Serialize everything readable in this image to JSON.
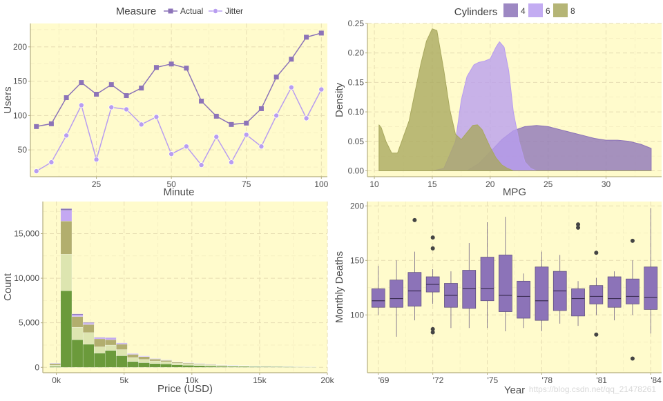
{
  "colors": {
    "panel_bg": "#FFFBCC",
    "grid": "#E6DDB2",
    "axis_line": "#B3AE7E",
    "actual": "#8C73B8",
    "jitter": "#B89DF0",
    "cyl4": "#8C73B8",
    "cyl6": "#B89DF0",
    "cyl8": "#A8A85E",
    "hist": [
      "#6B9A3B",
      "#DDE5B0",
      "#B2AE6E",
      "#C4A8F2",
      "#8A75B8"
    ],
    "box_fill": "#8C73B8",
    "box_line": "#5a4a7a",
    "outlier": "#444444"
  },
  "chart_data": [
    {
      "id": "line",
      "type": "line",
      "xlabel": "Minute",
      "ylabel": "Users",
      "xlim": [
        3,
        102
      ],
      "ylim": [
        11,
        234
      ],
      "xticks": [
        25,
        50,
        75,
        100
      ],
      "yticks": [
        50,
        100,
        150,
        200
      ],
      "legend": {
        "title": "Measure",
        "position": "top"
      },
      "x": [
        5,
        10,
        15,
        20,
        25,
        30,
        35,
        40,
        45,
        50,
        55,
        60,
        65,
        70,
        75,
        80,
        85,
        90,
        95,
        100
      ],
      "series": [
        {
          "name": "Actual",
          "marker": "square",
          "values": [
            84,
            88,
            126,
            148,
            131,
            145,
            129,
            140,
            170,
            175,
            169,
            121,
            99,
            87,
            89,
            110,
            156,
            182,
            214,
            220
          ]
        },
        {
          "name": "Jitter",
          "marker": "circle",
          "values": [
            19,
            32,
            71,
            115,
            36,
            112,
            109,
            87,
            98,
            44,
            55,
            28,
            69,
            32,
            72,
            55,
            100,
            141,
            96,
            138
          ]
        }
      ]
    },
    {
      "id": "density",
      "type": "area",
      "xlabel": "MPG",
      "ylabel": "Density",
      "xlim": [
        9.4,
        34.8
      ],
      "ylim": [
        -0.01,
        0.25
      ],
      "xticks": [
        10,
        15,
        20,
        25,
        30
      ],
      "yticks": [
        0.0,
        0.05,
        0.1,
        0.15,
        0.2,
        0.25
      ],
      "ytick_labels": [
        "0.00",
        "0.05",
        "0.10",
        "0.15",
        "0.20",
        "0.25"
      ],
      "legend": {
        "title": "Cylinders",
        "position": "top"
      },
      "series": [
        {
          "name": "4",
          "x": [
            10.4,
            18,
            19,
            20,
            21,
            22,
            23,
            24,
            25,
            26,
            27,
            28,
            29,
            30,
            31,
            32,
            33,
            33.9
          ],
          "values": [
            0.0,
            0.0,
            0.012,
            0.032,
            0.053,
            0.068,
            0.075,
            0.077,
            0.075,
            0.07,
            0.065,
            0.06,
            0.055,
            0.052,
            0.052,
            0.05,
            0.045,
            0.038
          ]
        },
        {
          "name": "6",
          "x": [
            10.4,
            15.0,
            16.0,
            17.0,
            17.5,
            18.0,
            18.6,
            19.0,
            19.5,
            20.0,
            20.5,
            20.8,
            21.2,
            21.6,
            22.0,
            22.5,
            23.0,
            23.5,
            24.0,
            33.9
          ],
          "values": [
            0.0,
            0.0,
            0.004,
            0.05,
            0.12,
            0.16,
            0.18,
            0.184,
            0.186,
            0.19,
            0.21,
            0.219,
            0.21,
            0.17,
            0.1,
            0.05,
            0.015,
            0.004,
            0.0,
            0.0
          ]
        },
        {
          "name": "8",
          "x": [
            10.4,
            10.6,
            11.0,
            11.5,
            12.0,
            13.0,
            14.0,
            14.5,
            15.0,
            15.4,
            16.0,
            16.5,
            17.0,
            17.5,
            18.0,
            18.5,
            18.9,
            19.3,
            20.0,
            20.5,
            21.0,
            21.5,
            22.0,
            33.9
          ],
          "values": [
            0.078,
            0.073,
            0.05,
            0.03,
            0.03,
            0.085,
            0.18,
            0.22,
            0.241,
            0.238,
            0.17,
            0.105,
            0.062,
            0.053,
            0.065,
            0.077,
            0.078,
            0.07,
            0.04,
            0.022,
            0.01,
            0.004,
            0.0,
            0.0
          ]
        }
      ]
    },
    {
      "id": "histogram",
      "type": "bar",
      "stacked": true,
      "xlabel": "Price (USD)",
      "ylabel": "Count",
      "xlim": [
        -1000,
        20000
      ],
      "ylim": [
        -600,
        18600
      ],
      "xticks": [
        0,
        5000,
        10000,
        15000,
        20000
      ],
      "xtick_labels": [
        "0k",
        "5k",
        "10k",
        "15k",
        "20k"
      ],
      "yticks": [
        0,
        5000,
        10000,
        15000
      ],
      "ytick_labels": [
        "0",
        "5,000",
        "10,000",
        "15,000"
      ],
      "bin_width": 820,
      "bin_starts": [
        -500,
        320,
        1140,
        1960,
        2780,
        3600,
        4420,
        5240,
        6060,
        6880,
        7700,
        8520,
        9340,
        10160,
        10980,
        11800,
        12620,
        13440,
        14260,
        15080,
        15900,
        16720,
        17540,
        18360
      ],
      "series": [
        {
          "values": [
            100,
            8600,
            3100,
            2600,
            1600,
            1900,
            1300,
            650,
            520,
            420,
            380,
            280,
            230,
            200,
            160,
            130,
            110,
            100,
            90,
            80,
            70,
            60,
            50,
            40
          ]
        },
        {
          "values": [
            150,
            4100,
            1400,
            1300,
            700,
            600,
            700,
            450,
            380,
            300,
            250,
            180,
            150,
            120,
            90,
            70,
            60,
            50,
            40,
            35,
            30,
            25,
            20,
            15
          ]
        },
        {
          "values": [
            170,
            3700,
            1200,
            900,
            900,
            600,
            600,
            350,
            300,
            200,
            150,
            120,
            100,
            80,
            60,
            50,
            40,
            30,
            25,
            20,
            15,
            15,
            10,
            10
          ]
        },
        {
          "values": [
            40,
            1200,
            200,
            150,
            120,
            200,
            100,
            80,
            60,
            50,
            40,
            35,
            30,
            25,
            20,
            15,
            12,
            10,
            8,
            6,
            5,
            4,
            3,
            2
          ]
        },
        {
          "values": [
            20,
            200,
            100,
            80,
            60,
            50,
            40,
            30,
            25,
            20,
            15,
            12,
            10,
            8,
            6,
            5,
            4,
            3,
            2,
            2,
            1,
            1,
            1,
            1
          ]
        }
      ]
    },
    {
      "id": "boxplot",
      "type": "boxplot",
      "xlabel": "Year",
      "ylabel": "Monthly Deaths",
      "xlim": [
        1968.4,
        1984.6
      ],
      "ylim": [
        47,
        204
      ],
      "xticks": [
        1969,
        1972,
        1975,
        1978,
        1981,
        1984
      ],
      "xtick_labels": [
        "'69",
        "'72",
        "'75",
        "'78",
        "'81",
        "'84"
      ],
      "yticks": [
        100,
        150,
        200
      ],
      "boxes": [
        {
          "year": 1969,
          "min": 100,
          "q1": 107,
          "median": 113,
          "q3": 124,
          "max": 145,
          "outliers": []
        },
        {
          "year": 1970,
          "min": 80,
          "q1": 107,
          "median": 115,
          "q3": 132,
          "max": 150,
          "outliers": []
        },
        {
          "year": 1971,
          "min": 95,
          "q1": 108,
          "median": 122,
          "q3": 139,
          "max": 158,
          "outliers": [
            187
          ]
        },
        {
          "year": 1972,
          "min": 110,
          "q1": 121,
          "median": 128,
          "q3": 135,
          "max": 142,
          "outliers": [
            171,
            161,
            87,
            84
          ]
        },
        {
          "year": 1973,
          "min": 88,
          "q1": 107,
          "median": 118,
          "q3": 129,
          "max": 140,
          "outliers": []
        },
        {
          "year": 1974,
          "min": 88,
          "q1": 106,
          "median": 124,
          "q3": 141,
          "max": 166,
          "outliers": []
        },
        {
          "year": 1975,
          "min": 88,
          "q1": 113,
          "median": 124,
          "q3": 153,
          "max": 185,
          "outliers": []
        },
        {
          "year": 1976,
          "min": 85,
          "q1": 103,
          "median": 118,
          "q3": 155,
          "max": 190,
          "outliers": []
        },
        {
          "year": 1977,
          "min": 88,
          "q1": 97,
          "median": 117,
          "q3": 131,
          "max": 138,
          "outliers": []
        },
        {
          "year": 1978,
          "min": 85,
          "q1": 95,
          "median": 113,
          "q3": 144,
          "max": 158,
          "outliers": []
        },
        {
          "year": 1979,
          "min": 92,
          "q1": 104,
          "median": 122,
          "q3": 140,
          "max": 155,
          "outliers": []
        },
        {
          "year": 1980,
          "min": 90,
          "q1": 99,
          "median": 115,
          "q3": 124,
          "max": 131,
          "outliers": [
            183,
            180
          ]
        },
        {
          "year": 1981,
          "min": 100,
          "q1": 110,
          "median": 117,
          "q3": 127,
          "max": 134,
          "outliers": [
            157,
            82
          ]
        },
        {
          "year": 1982,
          "min": 95,
          "q1": 107,
          "median": 115,
          "q3": 135,
          "max": 140,
          "outliers": []
        },
        {
          "year": 1983,
          "min": 100,
          "q1": 110,
          "median": 117,
          "q3": 133,
          "max": 150,
          "outliers": [
            168,
            60
          ]
        },
        {
          "year": 1984,
          "min": 83,
          "q1": 105,
          "median": 116,
          "q3": 144,
          "max": 198,
          "outliers": []
        }
      ]
    }
  ],
  "watermark": "https://blog.csdn.net/qq_21478261"
}
